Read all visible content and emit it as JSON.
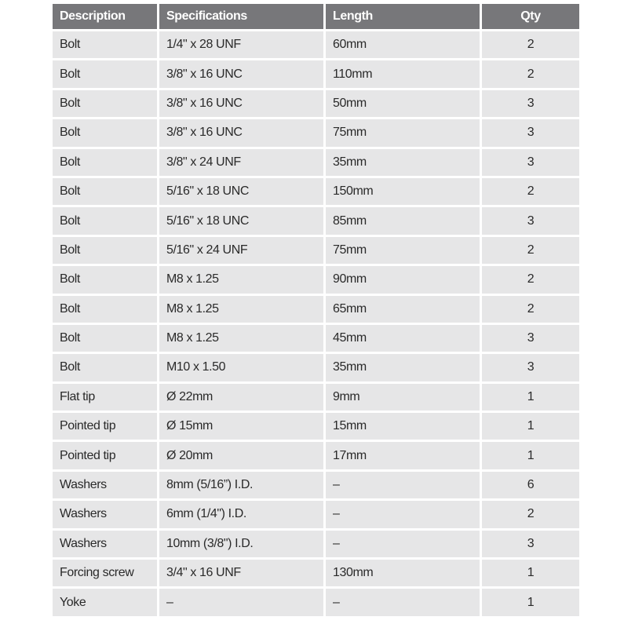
{
  "headers": [
    "Description",
    "Specifications",
    "Length",
    "Qty"
  ],
  "rows": [
    [
      "Bolt",
      "1/4\" x 28 UNF",
      "60mm",
      "2"
    ],
    [
      "Bolt",
      "3/8\" x 16 UNC",
      "110mm",
      "2"
    ],
    [
      "Bolt",
      "3/8\" x 16 UNC",
      "50mm",
      "3"
    ],
    [
      "Bolt",
      "3/8\" x 16 UNC",
      "75mm",
      "3"
    ],
    [
      "Bolt",
      "3/8\" x 24 UNF",
      "35mm",
      "3"
    ],
    [
      "Bolt",
      "5/16\" x 18 UNC",
      "150mm",
      "2"
    ],
    [
      "Bolt",
      "5/16\" x 18 UNC",
      "85mm",
      "3"
    ],
    [
      "Bolt",
      "5/16\" x 24 UNF",
      "75mm",
      "2"
    ],
    [
      "Bolt",
      "M8 x 1.25",
      "90mm",
      "2"
    ],
    [
      "Bolt",
      "M8 x 1.25",
      "65mm",
      "2"
    ],
    [
      "Bolt",
      "M8 x 1.25",
      "45mm",
      "3"
    ],
    [
      "Bolt",
      "M10 x 1.50",
      "35mm",
      "3"
    ],
    [
      "Flat tip",
      "Ø 22mm",
      "9mm",
      "1"
    ],
    [
      "Pointed tip",
      "Ø 15mm",
      "15mm",
      "1"
    ],
    [
      "Pointed tip",
      "Ø 20mm",
      "17mm",
      "1"
    ],
    [
      "Washers",
      "8mm (5/16”) I.D.",
      "–",
      "6"
    ],
    [
      "Washers",
      "6mm (1/4\") I.D.",
      "–",
      "2"
    ],
    [
      "Washers",
      "10mm (3/8\") I.D.",
      "–",
      "3"
    ],
    [
      "Forcing screw",
      "3/4\" x 16 UNF",
      "130mm",
      "1"
    ],
    [
      "Yoke",
      "–",
      "–",
      "1"
    ]
  ],
  "colors": {
    "header_bg": "#77777a",
    "cell_bg": "#e6e6e7"
  }
}
